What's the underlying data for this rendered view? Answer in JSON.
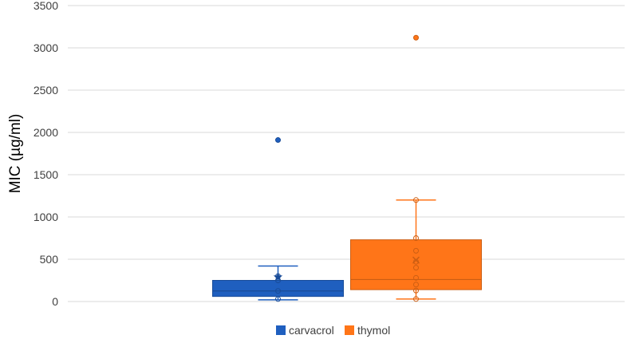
{
  "chart_data": {
    "type": "box",
    "ylabel": "MIC (µg/ml)",
    "xlabel": "",
    "ylim": [
      0,
      3500
    ],
    "yticks": [
      0,
      500,
      1000,
      1500,
      2000,
      2500,
      3000,
      3500
    ],
    "grid": true,
    "legend_position": "bottom",
    "series": [
      {
        "name": "carvacrol",
        "color": "#1f5fbf",
        "min": 20,
        "q1": 60,
        "median": 125,
        "q3": 250,
        "max": 420,
        "mean": 290,
        "mean_marker": "star",
        "points": [
          30,
          125,
          250,
          300
        ],
        "outliers": [
          1910
        ]
      },
      {
        "name": "thymol",
        "color": "#ff7518",
        "min": 30,
        "q1": 140,
        "median": 260,
        "q3": 730,
        "max": 1200,
        "mean": 490,
        "mean_marker": "x",
        "points": [
          30,
          130,
          200,
          280,
          400,
          470,
          600,
          750,
          1200
        ],
        "outliers": [
          3120
        ]
      }
    ]
  }
}
